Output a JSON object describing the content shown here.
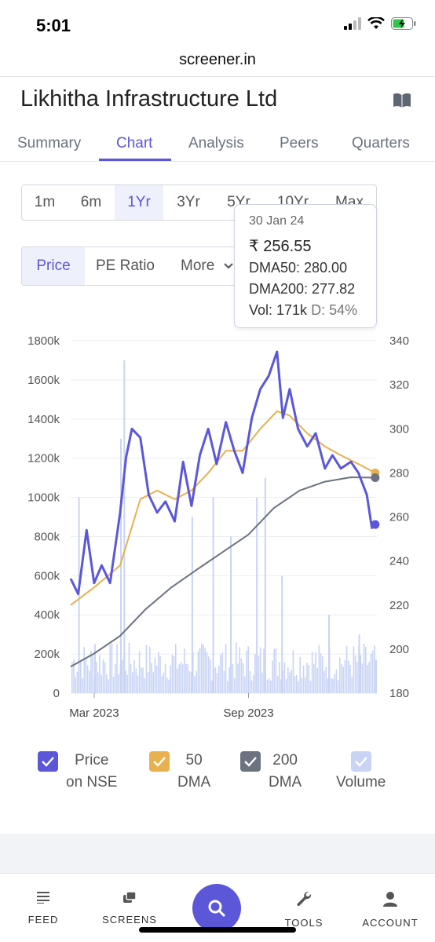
{
  "status": {
    "time": "5:01"
  },
  "browser": {
    "url": "screener.in"
  },
  "company": {
    "name": "Likhitha Infrastructure Ltd"
  },
  "tabs": [
    "Summary",
    "Chart",
    "Analysis",
    "Peers",
    "Quarters"
  ],
  "active_tab": "Chart",
  "ranges": [
    "1m",
    "6m",
    "1Yr",
    "3Yr",
    "5Yr",
    "10Yr",
    "Max"
  ],
  "active_range": "1Yr",
  "metrics": {
    "price": "Price",
    "pe": "PE Ratio",
    "more": "More"
  },
  "tooltip": {
    "date": "30 Jan 24",
    "price": "₹ 256.55",
    "dma50": "DMA50: 280.00",
    "dma200": "DMA200: 277.82",
    "vol": "Vol: 171k",
    "delivery_label": "D:",
    "delivery_value": "54%"
  },
  "legend": [
    {
      "line1": "Price",
      "line2": "on NSE",
      "color": "#5c57d9"
    },
    {
      "line1": "50",
      "line2": "DMA",
      "color": "#e8b04f"
    },
    {
      "line1": "200",
      "line2": "DMA",
      "color": "#6b7280"
    },
    {
      "line1": "",
      "line2": "Volume",
      "color": "#c9d4f5"
    }
  ],
  "nav": {
    "feed": "FEED",
    "screens": "SCREENS",
    "tools": "TOOLS",
    "account": "ACCOUNT"
  },
  "colors": {
    "accent": "#5c57d9",
    "dma50": "#e8b04f",
    "dma200": "#6b7280",
    "volume": "#c9d4f5"
  },
  "chart_data": {
    "type": "line",
    "x_tick_labels": [
      "Mar 2023",
      "Sep 2023"
    ],
    "y_left_ticks": [
      "1800k",
      "1600k",
      "1400k",
      "1200k",
      "1000k",
      "800k",
      "600k",
      "400k",
      "200k",
      "0"
    ],
    "y_right_ticks": [
      "340",
      "320",
      "300",
      "280",
      "260",
      "240",
      "220",
      "200",
      "180"
    ],
    "y_right_range": [
      180,
      340
    ],
    "y_left_range": [
      0,
      1800000
    ],
    "x_range": [
      "2023-02-01",
      "2024-02-01"
    ],
    "grid": true,
    "series": [
      {
        "name": "Price on NSE",
        "x": [
          "2023-02-01",
          "2023-02-10",
          "2023-02-20",
          "2023-03-01",
          "2023-03-10",
          "2023-03-20",
          "2023-04-01",
          "2023-04-08",
          "2023-04-15",
          "2023-04-25",
          "2023-05-05",
          "2023-05-15",
          "2023-05-25",
          "2023-06-05",
          "2023-06-15",
          "2023-06-25",
          "2023-07-05",
          "2023-07-15",
          "2023-07-25",
          "2023-08-05",
          "2023-08-15",
          "2023-08-25",
          "2023-09-05",
          "2023-09-15",
          "2023-09-25",
          "2023-10-05",
          "2023-10-12",
          "2023-10-20",
          "2023-10-30",
          "2023-11-10",
          "2023-11-20",
          "2023-12-01",
          "2023-12-10",
          "2023-12-20",
          "2024-01-01",
          "2024-01-10",
          "2024-01-20",
          "2024-01-26",
          "2024-01-30"
        ],
        "values": [
          232,
          225,
          254,
          230,
          238,
          230,
          262,
          287,
          300,
          296,
          270,
          262,
          267,
          258,
          285,
          265,
          288,
          300,
          284,
          303,
          290,
          280,
          305,
          318,
          324,
          335,
          305,
          318,
          300,
          292,
          298,
          282,
          288,
          282,
          285,
          280,
          270,
          255,
          256.55
        ]
      },
      {
        "name": "50 DMA",
        "x": [
          "2023-02-01",
          "2023-03-01",
          "2023-04-01",
          "2023-04-25",
          "2023-05-15",
          "2023-06-05",
          "2023-06-25",
          "2023-07-15",
          "2023-08-05",
          "2023-08-25",
          "2023-09-15",
          "2023-10-05",
          "2023-10-20",
          "2023-11-10",
          "2023-12-01",
          "2023-12-20",
          "2024-01-10",
          "2024-01-30"
        ],
        "values": [
          220,
          228,
          238,
          268,
          272,
          268,
          272,
          280,
          290,
          290,
          300,
          308,
          306,
          298,
          292,
          288,
          284,
          280
        ]
      },
      {
        "name": "200 DMA",
        "x": [
          "2023-02-01",
          "2023-03-01",
          "2023-04-01",
          "2023-05-01",
          "2023-06-01",
          "2023-07-01",
          "2023-08-01",
          "2023-09-01",
          "2023-10-01",
          "2023-11-01",
          "2023-12-01",
          "2024-01-01",
          "2024-01-30"
        ],
        "values": [
          192,
          198,
          206,
          218,
          228,
          236,
          244,
          252,
          264,
          272,
          276,
          278,
          277.82
        ]
      },
      {
        "name": "Volume",
        "x": [
          "2023-02-10",
          "2023-03-01",
          "2023-04-01",
          "2023-04-05",
          "2023-06-25",
          "2023-07-20",
          "2023-08-10",
          "2023-09-10",
          "2023-09-20",
          "2023-10-10",
          "2023-12-05",
          "2024-01-10",
          "2024-01-30"
        ],
        "values": [
          1000000,
          250000,
          1300000,
          1700000,
          900000,
          1000000,
          800000,
          1000000,
          1100000,
          600000,
          400000,
          300000,
          171000
        ]
      }
    ]
  }
}
